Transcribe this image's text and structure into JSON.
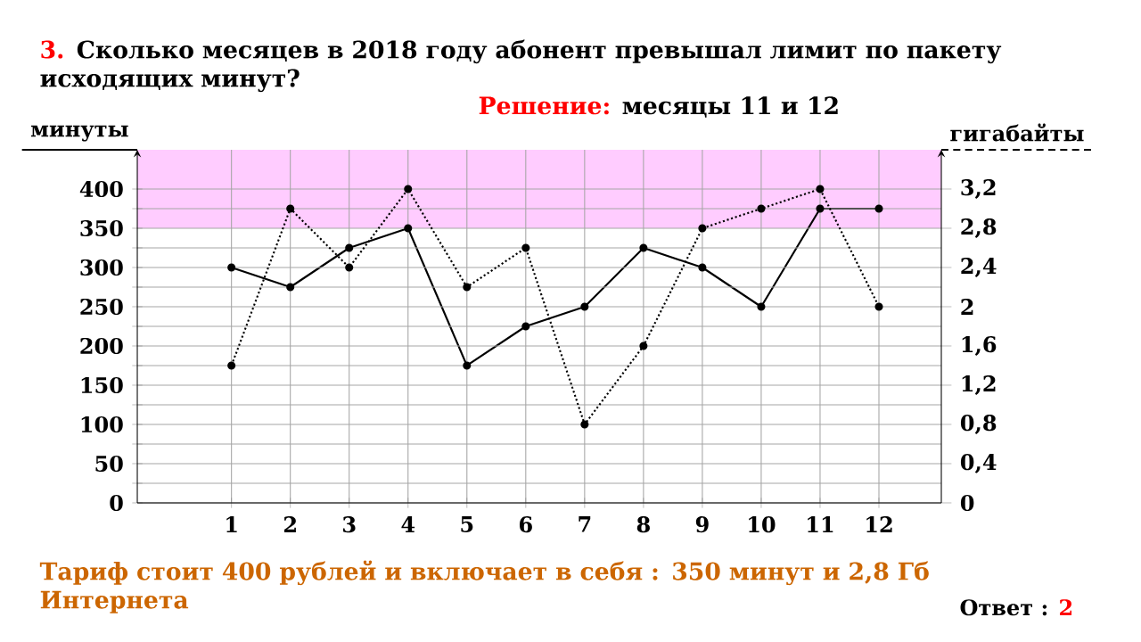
{
  "chart_data": {
    "type": "line",
    "title": "Сколько месяцев в 2018 году абонент превышал лимит по пакету исходящих минут?",
    "annotations": [
      "3.",
      "Решение:",
      "месяцы 11 и 12",
      "Тариф стоит 400 рублей и включает в себя : 350 минут и 2,8 Гб Интернета",
      "Ответ :",
      "2"
    ],
    "ylabel": "минуты",
    "y2label": "гигабайты",
    "categories": [
      "1",
      "2",
      "3",
      "4",
      "5",
      "6",
      "7",
      "8",
      "9",
      "10",
      "11",
      "12"
    ],
    "series": [
      {
        "color": "#000000",
        "line_style": "solid",
        "values": [
          300,
          275,
          325,
          350,
          175,
          225,
          250,
          325,
          300,
          250,
          375,
          375
        ]
      },
      {
        "color": "#000000",
        "line_style": "dotted",
        "axis": "y2",
        "values": [
          1.4,
          3.0,
          2.4,
          3.2,
          2.2,
          2.6,
          0.8,
          1.6,
          2.8,
          3.0,
          3.2,
          2.0
        ]
      }
    ],
    "ylim": [
      0,
      450
    ],
    "yticks": [
      0,
      {
        "value": 25,
        "label": null
      },
      50,
      {
        "value": 75,
        "label": null
      },
      100,
      {
        "value": 125,
        "label": null
      },
      150,
      {
        "value": 175,
        "label": null
      },
      200,
      {
        "value": 225,
        "label": null
      },
      250,
      {
        "value": 275,
        "label": null
      },
      300,
      {
        "value": 325,
        "label": null
      },
      350,
      {
        "value": 375,
        "label": null
      },
      400
    ],
    "y2lim": [
      0,
      3.6
    ],
    "y2ticks": [
      0,
      {
        "value": 0.4,
        "label": "0,4"
      },
      {
        "value": 0.8,
        "label": "0,8"
      },
      {
        "value": 1.2,
        "label": "1,2"
      },
      {
        "value": 1.6,
        "label": "1,6"
      },
      2,
      {
        "value": 2.4,
        "label": "2,4"
      },
      {
        "value": 2.8,
        "label": "2,8"
      },
      {
        "value": 3.2,
        "label": "3,2"
      }
    ],
    "bands": [
      {
        "axis": "y",
        "from": 350,
        "to": 450,
        "color": "#ffccff"
      }
    ],
    "grid": true,
    "marker": "circle"
  }
}
